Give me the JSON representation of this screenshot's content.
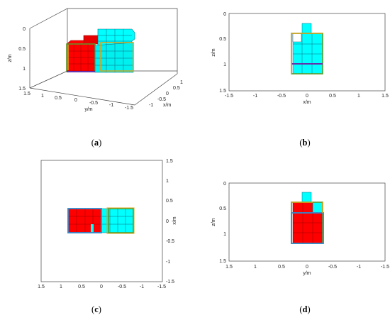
{
  "colors": {
    "red": "#ff0000",
    "cyan": "#00ffff",
    "outline_gold": "#d8a41c",
    "outline_blue": "#3388cc",
    "outline_green": "#5a9a2c",
    "outline_purple": "#6633aa"
  },
  "panels": {
    "a": {
      "caption_open": "(",
      "caption_letter": "a",
      "caption_close": ")",
      "z_label": "z/m",
      "y_label": "y/m",
      "x_label": "x/m",
      "z_ticks": [
        "0",
        "0.5",
        "1",
        "1.5"
      ],
      "y_ticks": [
        "1.5",
        "1",
        "0.5",
        "0",
        "-0.5",
        "-1",
        "-1.5"
      ],
      "x_ticks": [
        "1",
        "0.5",
        "0",
        "-0.5",
        "-1"
      ]
    },
    "b": {
      "caption_open": "(",
      "caption_letter": "b",
      "caption_close": ")",
      "z_label": "z/m",
      "x_label": "x/m",
      "z_ticks": [
        "0",
        "0.5",
        "1",
        "1.5"
      ],
      "x_ticks": [
        "-1.5",
        "-1",
        "-0.5",
        "0",
        "0.5",
        "1",
        "1.5"
      ]
    },
    "c": {
      "caption_open": "(",
      "caption_letter": "c",
      "caption_close": ")",
      "x_label": "x/m",
      "right_ticks": [
        "1.5",
        "1",
        "0.5",
        "0",
        "-0.5",
        "-1",
        "-1.5"
      ],
      "bottom_ticks": [
        "1.5",
        "1",
        "0.5",
        "0",
        "-0.5",
        "-1",
        "-1.5"
      ]
    },
    "d": {
      "caption_open": "(",
      "caption_letter": "d",
      "caption_close": ")",
      "z_label": "z/m",
      "y_label": "y/m",
      "z_ticks": [
        "0",
        "0.5",
        "1",
        "1.5"
      ],
      "y_ticks": [
        "1.5",
        "1",
        "0.5",
        "0",
        "-0.5",
        "-1",
        "-1.5"
      ]
    }
  }
}
